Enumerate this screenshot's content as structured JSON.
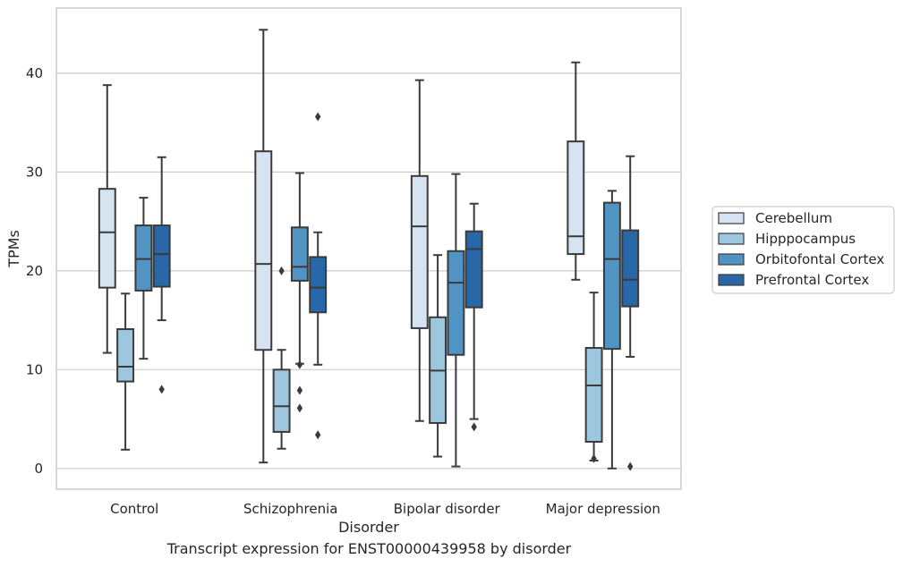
{
  "caption": "Transcript expression for ENST00000439958 by disorder",
  "chart_data": {
    "type": "box",
    "xlabel": "Disorder",
    "ylabel": "TPMs",
    "ylim": [
      -2.1,
      46.6
    ],
    "yticks": [
      0,
      10,
      20,
      30,
      40
    ],
    "grid": "horizontal",
    "legend_position": "right",
    "categories": [
      "Control",
      "Schizophrenia",
      "Bipolar disorder",
      "Major depression"
    ],
    "series": [
      {
        "name": "Cerebellum",
        "color": "#d6e4f2",
        "boxes": [
          {
            "whisker_low": 11.7,
            "q1": 18.3,
            "median": 23.9,
            "q3": 28.3,
            "whisker_high": 38.8,
            "outliers": []
          },
          {
            "whisker_low": 0.6,
            "q1": 12.0,
            "median": 20.7,
            "q3": 32.1,
            "whisker_high": 44.4,
            "outliers": []
          },
          {
            "whisker_low": 4.8,
            "q1": 14.2,
            "median": 24.5,
            "q3": 29.6,
            "whisker_high": 39.3,
            "outliers": []
          },
          {
            "whisker_low": 19.1,
            "q1": 21.7,
            "median": 23.5,
            "q3": 33.1,
            "whisker_high": 41.1,
            "outliers": []
          }
        ]
      },
      {
        "name": "Hipppocampus",
        "color": "#9dc6df",
        "boxes": [
          {
            "whisker_low": 1.9,
            "q1": 8.8,
            "median": 10.3,
            "q3": 14.1,
            "whisker_high": 17.7,
            "outliers": []
          },
          {
            "whisker_low": 2.0,
            "q1": 3.7,
            "median": 6.3,
            "q3": 10.0,
            "whisker_high": 12.0,
            "outliers": [
              20.0
            ]
          },
          {
            "whisker_low": 1.2,
            "q1": 4.6,
            "median": 9.9,
            "q3": 15.3,
            "whisker_high": 21.6,
            "outliers": []
          },
          {
            "whisker_low": 0.8,
            "q1": 2.7,
            "median": 8.4,
            "q3": 12.2,
            "whisker_high": 17.8,
            "outliers": [
              1.0
            ]
          }
        ]
      },
      {
        "name": "Orbitofontal Cortex",
        "color": "#5193c3",
        "boxes": [
          {
            "whisker_low": 11.1,
            "q1": 18.0,
            "median": 21.2,
            "q3": 24.6,
            "whisker_high": 27.4,
            "outliers": []
          },
          {
            "whisker_low": 10.6,
            "q1": 19.0,
            "median": 20.4,
            "q3": 24.4,
            "whisker_high": 29.9,
            "outliers": [
              10.5,
              7.9,
              6.1
            ]
          },
          {
            "whisker_low": 0.2,
            "q1": 11.5,
            "median": 18.8,
            "q3": 22.0,
            "whisker_high": 29.8,
            "outliers": []
          },
          {
            "whisker_low": 0.0,
            "q1": 12.1,
            "median": 21.2,
            "q3": 26.9,
            "whisker_high": 28.1,
            "outliers": []
          }
        ]
      },
      {
        "name": "Prefrontal Cortex",
        "color": "#2867a8",
        "boxes": [
          {
            "whisker_low": 15.0,
            "q1": 18.4,
            "median": 21.7,
            "q3": 24.6,
            "whisker_high": 31.5,
            "outliers": [
              8.0
            ]
          },
          {
            "whisker_low": 10.5,
            "q1": 15.8,
            "median": 18.3,
            "q3": 21.4,
            "whisker_high": 23.9,
            "outliers": [
              35.6,
              3.4
            ]
          },
          {
            "whisker_low": 5.0,
            "q1": 16.3,
            "median": 22.2,
            "q3": 24.0,
            "whisker_high": 26.8,
            "outliers": [
              4.2
            ]
          },
          {
            "whisker_low": 11.3,
            "q1": 16.4,
            "median": 19.1,
            "q3": 24.1,
            "whisker_high": 31.6,
            "outliers": [
              0.2
            ]
          }
        ]
      }
    ]
  }
}
